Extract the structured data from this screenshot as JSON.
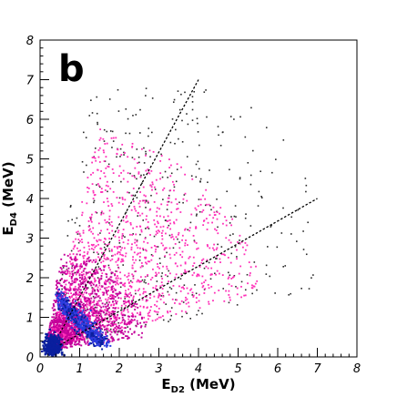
{
  "chart_data": {
    "type": "heatmap",
    "panel_label": "b",
    "xlabel_main": "E",
    "xlabel_sub": "D2",
    "xlabel_unit": " (MeV)",
    "ylabel_main": "E",
    "ylabel_sub": "D4",
    "ylabel_unit": " (MeV)",
    "xlim": [
      0,
      8
    ],
    "ylim": [
      0,
      8
    ],
    "x_ticks": [
      "0",
      "1",
      "2",
      "3",
      "4",
      "5",
      "6",
      "7",
      "8"
    ],
    "y_ticks": [
      "0",
      "1",
      "2",
      "3",
      "4",
      "5",
      "6",
      "7",
      "8"
    ],
    "grid": false,
    "reference_lines": [
      {
        "x": [
          0.5,
          4.0
        ],
        "y": [
          0.6,
          7.0
        ]
      },
      {
        "x": [
          0.5,
          7.0
        ],
        "y": [
          0.3,
          4.0
        ]
      }
    ],
    "density_colors": {
      "high": "#0a1f9e",
      "mid_high": "#2c3de0",
      "mid": "#c4009a",
      "low": "#ff2fb8",
      "sparse": "#2b2b2b"
    },
    "density_regions": [
      {
        "level": "high",
        "x": [
          0.15,
          0.55
        ],
        "y": [
          0.05,
          0.6
        ]
      },
      {
        "level": "mid_high",
        "x": [
          0.5,
          1.8
        ],
        "y": [
          0.4,
          1.7
        ]
      },
      {
        "level": "mid",
        "x": [
          0.3,
          2.2
        ],
        "y": [
          0.3,
          2.0
        ]
      },
      {
        "level": "low",
        "x": [
          0.5,
          5.0
        ],
        "y": [
          0.5,
          5.0
        ]
      },
      {
        "level": "sparse",
        "x": [
          0.5,
          7.0
        ],
        "y": [
          0.5,
          6.8
        ]
      }
    ]
  }
}
